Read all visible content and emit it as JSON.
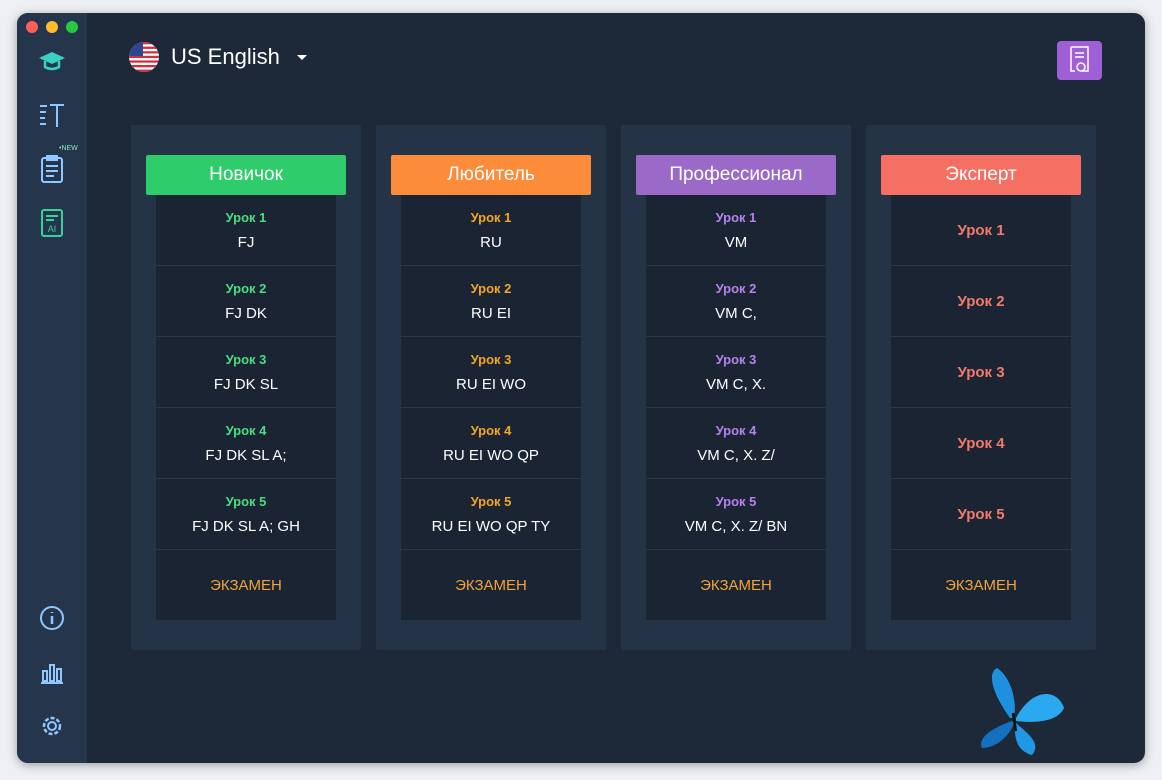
{
  "header": {
    "language": "US English"
  },
  "sidebar": {
    "badge": "•NEW"
  },
  "levels": [
    {
      "title": "Новичок",
      "color": "#2ecc6a",
      "accent": "#4ade80",
      "lessons": [
        {
          "label": "Урок 1",
          "keys": "FJ"
        },
        {
          "label": "Урок 2",
          "keys": "FJ DK"
        },
        {
          "label": "Урок 3",
          "keys": "FJ DK SL"
        },
        {
          "label": "Урок 4",
          "keys": "FJ DK SL A;"
        },
        {
          "label": "Урок 5",
          "keys": "FJ DK SL A; GH"
        }
      ],
      "exam": "ЭКЗАМЕН"
    },
    {
      "title": "Любитель",
      "color": "#fd8c3a",
      "accent": "#f5a623",
      "lessons": [
        {
          "label": "Урок 1",
          "keys": "RU"
        },
        {
          "label": "Урок 2",
          "keys": "RU EI"
        },
        {
          "label": "Урок 3",
          "keys": "RU EI WO"
        },
        {
          "label": "Урок 4",
          "keys": "RU EI WO QP"
        },
        {
          "label": "Урок 5",
          "keys": "RU EI WO QP TY"
        }
      ],
      "exam": "ЭКЗАМЕН"
    },
    {
      "title": "Профессионал",
      "color": "#9b6ac9",
      "accent": "#b582ee",
      "lessons": [
        {
          "label": "Урок 1",
          "keys": "VM"
        },
        {
          "label": "Урок 2",
          "keys": "VM C,"
        },
        {
          "label": "Урок 3",
          "keys": "VM C, X."
        },
        {
          "label": "Урок 4",
          "keys": "VM C, X. Z/"
        },
        {
          "label": "Урок 5",
          "keys": "VM C, X. Z/ BN"
        }
      ],
      "exam": "ЭКЗАМЕН"
    },
    {
      "title": "Эксперт",
      "color": "#f56f63",
      "accent": "#f47a6c",
      "lessons": [
        {
          "label": "Урок 1"
        },
        {
          "label": "Урок 2"
        },
        {
          "label": "Урок 3"
        },
        {
          "label": "Урок 4"
        },
        {
          "label": "Урок 5"
        }
      ],
      "exam": "ЭКЗАМЕН"
    }
  ]
}
